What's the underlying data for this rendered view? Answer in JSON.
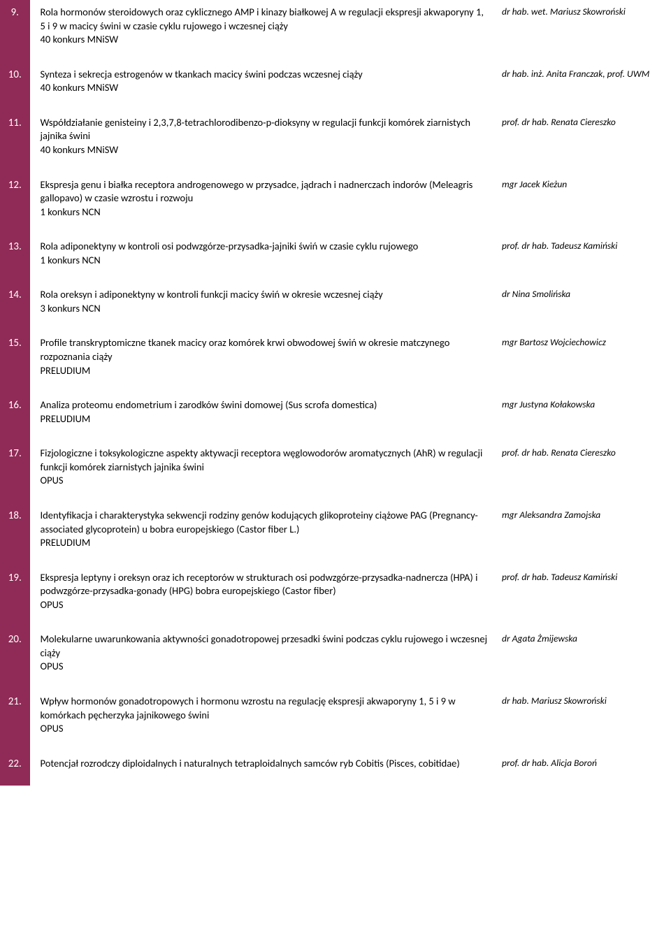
{
  "colors": {
    "rowBg": "#8f2b56",
    "numText": "#ffffff"
  },
  "rows": [
    {
      "num": "9.",
      "desc": "Rola hormonów steroidowych oraz cyklicznego AMP i kinazy białkowej A w regulacji ekspresji akwaporyny 1, 5 i 9 w macicy świni w czasie cyklu rujowego i wczesnej ciąży\n40 konkurs MNiSW",
      "author": "dr hab. wet. Mariusz Skowroński"
    },
    {
      "num": "10.",
      "desc": "Synteza i sekrecja estrogenów w tkankach macicy świni podczas wczesnej ciąży\n40 konkurs MNiSW",
      "author": "dr hab. inż. Anita Franczak, prof. UWM"
    },
    {
      "num": "11.",
      "desc": "Współdziałanie genisteiny i 2,3,7,8-tetrachlorodibenzo-p-dioksyny w regulacji funkcji komórek ziarnistych jajnika świni\n40 konkurs MNiSW",
      "author": "prof. dr hab. Renata Ciereszko"
    },
    {
      "num": "12.",
      "desc": "Ekspresja genu i białka receptora androgenowego w przysadce, jądrach i nadnerczach indorów (Meleagris gallopavo) w czasie wzrostu i rozwoju\n1 konkurs NCN",
      "author": "mgr Jacek Kieżun"
    },
    {
      "num": "13.",
      "desc": "Rola adiponektyny w kontroli osi podwzgórze-przysadka-jajniki świń w czasie cyklu rujowego\n1 konkurs NCN",
      "author": "prof. dr hab. Tadeusz Kamiński"
    },
    {
      "num": "14.",
      "desc": "Rola oreksyn i adiponektyny w kontroli funkcji macicy świń w okresie wczesnej ciąży\n3 konkurs NCN",
      "author": "dr Nina Smolińska"
    },
    {
      "num": "15.",
      "desc": "Profile transkryptomiczne tkanek macicy oraz komórek krwi obwodowej świń w okresie matczynego rozpoznania ciąży\nPRELUDIUM",
      "author": "mgr Bartosz Wojciechowicz"
    },
    {
      "num": "16.",
      "desc": "Analiza proteomu endometrium i zarodków świni domowej (Sus scrofa domestica)\nPRELUDIUM",
      "author": "mgr Justyna Kołakowska"
    },
    {
      "num": "17.",
      "desc": "Fizjologiczne i toksykologiczne aspekty aktywacji receptora węglowodorów aromatycznych (AhR) w regulacji funkcji komórek ziarnistych jajnika świni\nOPUS",
      "author": "prof. dr hab. Renata Ciereszko"
    },
    {
      "num": "18.",
      "desc": "Identyfikacja i charakterystyka sekwencji rodziny genów kodujących glikoproteiny ciążowe PAG (Pregnancy-associated glycoprotein) u bobra europejskiego (Castor fiber L.)\nPRELUDIUM",
      "author": "mgr Aleksandra Zamojska"
    },
    {
      "num": "19.",
      "desc": "Ekspresja leptyny i oreksyn oraz ich receptorów w strukturach osi podwzgórze-przysadka-nadnercza (HPA) i podwzgórze-przysadka-gonady (HPG) bobra europejskiego (Castor fiber)\nOPUS",
      "author": "prof. dr hab. Tadeusz Kamiński"
    },
    {
      "num": "20.",
      "desc": "Molekularne uwarunkowania aktywności gonadotropowej przesadki świni podczas cyklu rujowego i wczesnej ciąży\nOPUS",
      "author": "dr Agata Żmijewska"
    },
    {
      "num": "21.",
      "desc": "Wpływ hormonów gonadotropowych i hormonu wzrostu na regulację ekspresji akwaporyny 1, 5 i 9 w komórkach pęcherzyka jajnikowego świni\nOPUS",
      "author": "dr hab. Mariusz Skowroński"
    },
    {
      "num": "22.",
      "desc": "Potencjał rozrodczy diploidalnych i naturalnych tetraploidalnych samców ryb Cobitis (Pisces, cobitidae)",
      "author": "prof. dr hab. Alicja Boroń"
    }
  ]
}
